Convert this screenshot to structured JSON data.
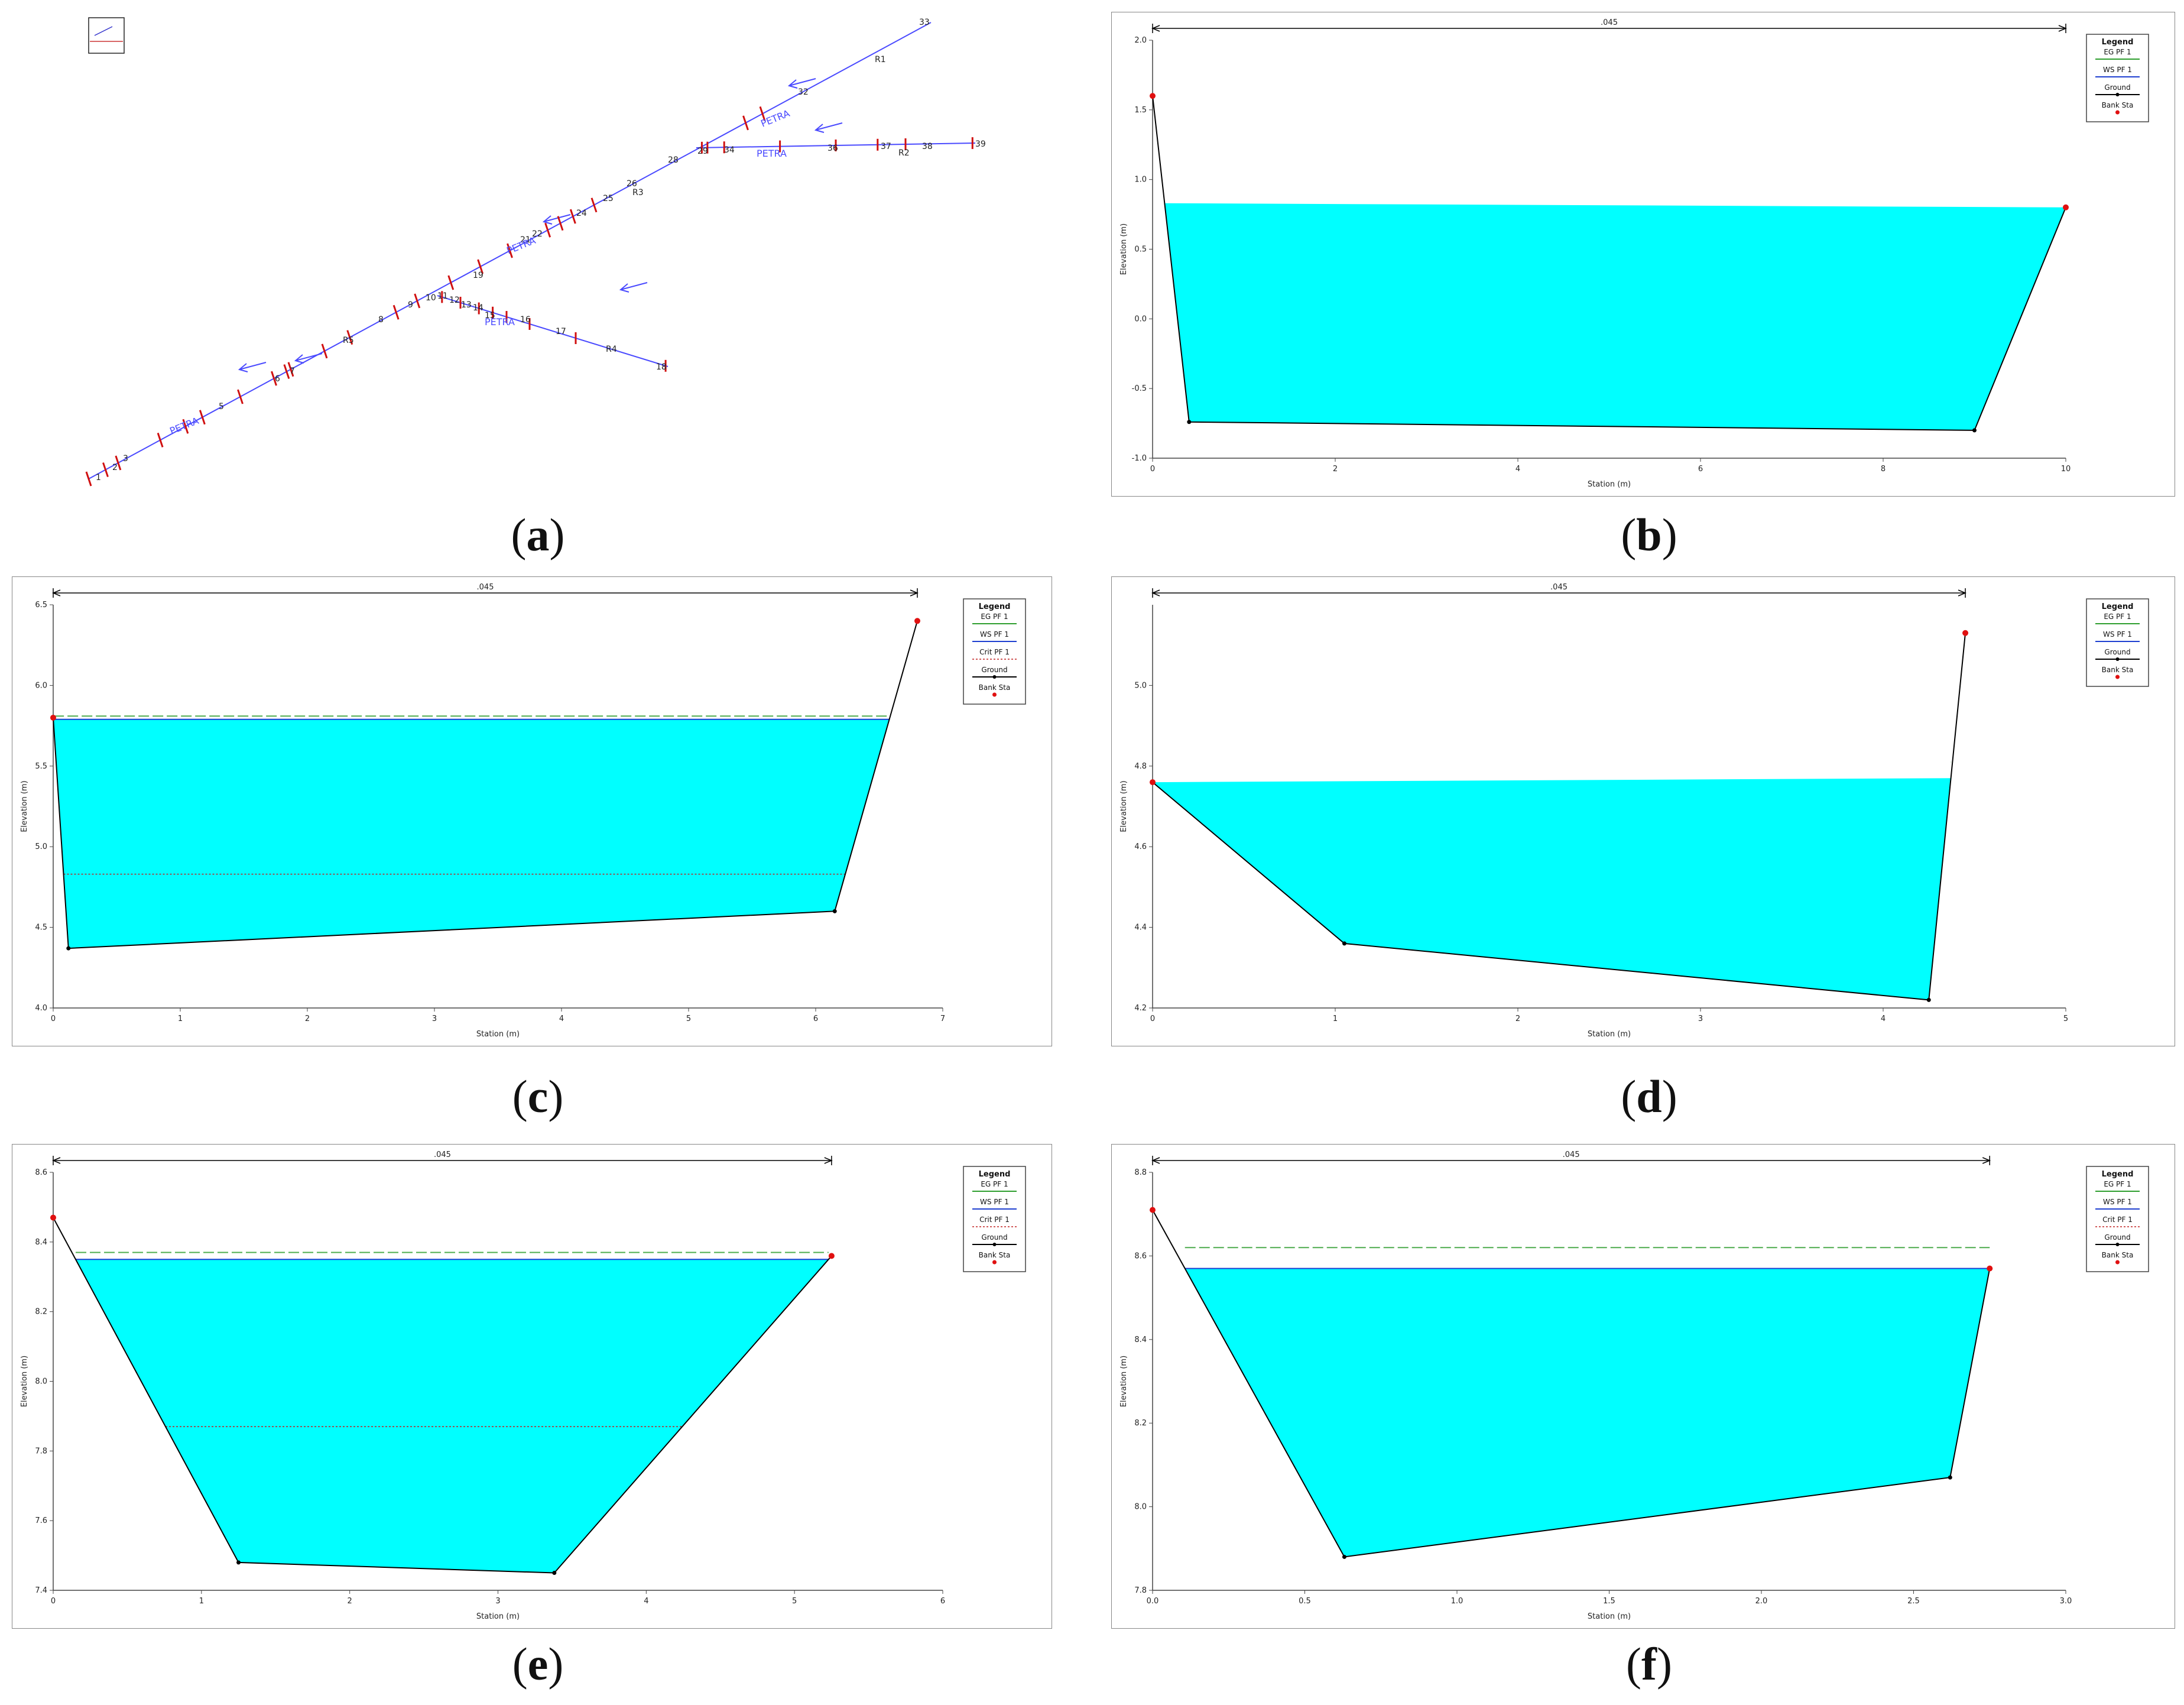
{
  "captions": {
    "a": "a",
    "b": "b",
    "c": "c",
    "d": "d",
    "e": "e",
    "f": "f"
  },
  "map": {
    "river_label": "PETRA",
    "reach_labels": [
      "R1",
      "R2",
      "R3",
      "R4",
      "R5"
    ],
    "station_labels": [
      "1",
      "2",
      "3",
      "5",
      "6",
      "7",
      "8",
      "9",
      "10",
      "11",
      "12",
      "13",
      "14",
      "15",
      "16",
      "17",
      "18",
      "19",
      "21",
      "22",
      "24",
      "25",
      "26",
      "28",
      "29",
      "33",
      "34",
      "36",
      "37",
      "38",
      "39",
      "32"
    ]
  },
  "legend": {
    "title": "Legend",
    "entries_3": [
      "EG PF 1",
      "WS PF 1",
      "Ground",
      "Bank Sta"
    ],
    "entries_4": [
      "EG PF 1",
      "WS PF 1",
      "Crit PF 1",
      "Ground",
      "Bank Sta"
    ]
  },
  "colors": {
    "water": "#00ffff",
    "eg": "#2e9e2e",
    "ws": "#1f3fd0",
    "crit": "#c02020",
    "bank": "#e01010",
    "ground": "#000000"
  },
  "chart_data": [
    {
      "id": "b",
      "type": "area",
      "xlabel": "Station (m)",
      "ylabel": "Elevation (m)",
      "xlim": [
        0,
        10
      ],
      "ylim": [
        -1.0,
        2.0
      ],
      "xticks": [
        0,
        2,
        4,
        6,
        8,
        10
      ],
      "xtick_labels": [
        "0",
        "2",
        "4",
        "6",
        "8",
        "10"
      ],
      "yticks": [
        -1.0,
        -0.5,
        0.0,
        0.5,
        1.0,
        1.5,
        2.0
      ],
      "ytick_labels": [
        "-1.0",
        "-0.5",
        "0.0",
        "0.5",
        "1.0",
        "1.5",
        "2.0"
      ],
      "manning_label": ".045",
      "manning_x": [
        0,
        10
      ],
      "ground": [
        [
          0,
          1.6
        ],
        [
          0.4,
          -0.74
        ],
        [
          9.0,
          -0.8
        ],
        [
          10,
          0.8
        ]
      ],
      "bank_stations": [
        [
          0,
          1.6
        ],
        [
          10,
          0.8
        ]
      ],
      "ws": 0.83,
      "eg": 0.85,
      "crit": null,
      "legend": "entries_3"
    },
    {
      "id": "c",
      "type": "area",
      "xlabel": "Station (m)",
      "ylabel": "Elevation (m)",
      "xlim": [
        0,
        7
      ],
      "ylim": [
        4.0,
        6.5
      ],
      "xticks": [
        0,
        1,
        2,
        3,
        4,
        5,
        6,
        7
      ],
      "xtick_labels": [
        "0",
        "1",
        "2",
        "3",
        "4",
        "5",
        "6",
        "7"
      ],
      "yticks": [
        4.0,
        4.5,
        5.0,
        5.5,
        6.0,
        6.5
      ],
      "ytick_labels": [
        "4.0",
        "4.5",
        "5.0",
        "5.5",
        "6.0",
        "6.5"
      ],
      "manning_label": ".045",
      "manning_x": [
        0,
        6.8
      ],
      "ground": [
        [
          0,
          5.8
        ],
        [
          0.12,
          4.37
        ],
        [
          6.15,
          4.6
        ],
        [
          6.8,
          6.4
        ]
      ],
      "bank_stations": [
        [
          0,
          5.8
        ],
        [
          6.8,
          6.4
        ]
      ],
      "ws": 5.79,
      "eg": 5.81,
      "crit": 4.83,
      "legend": "entries_4"
    },
    {
      "id": "d",
      "type": "area",
      "xlabel": "Station (m)",
      "ylabel": "Elevation (m)",
      "xlim": [
        0,
        5
      ],
      "ylim": [
        4.2,
        5.2
      ],
      "xticks": [
        0,
        1,
        2,
        3,
        4,
        5
      ],
      "xtick_labels": [
        "0",
        "1",
        "2",
        "3",
        "4",
        "5"
      ],
      "yticks": [
        4.2,
        4.4,
        4.6,
        4.8,
        5.0
      ],
      "ytick_labels": [
        "4.2",
        "4.4",
        "4.6",
        "4.8",
        "5.0"
      ],
      "manning_label": ".045",
      "manning_x": [
        0,
        4.45
      ],
      "ground": [
        [
          0,
          4.76
        ],
        [
          1.05,
          4.36
        ],
        [
          4.25,
          4.22
        ],
        [
          4.45,
          5.13
        ]
      ],
      "bank_stations": [
        [
          0,
          4.76
        ],
        [
          4.45,
          5.13
        ]
      ],
      "ws": 4.77,
      "eg": 4.81,
      "crit": null,
      "legend": "entries_3"
    },
    {
      "id": "e",
      "type": "area",
      "xlabel": "Station (m)",
      "ylabel": "Elevation (m)",
      "xlim": [
        0,
        6
      ],
      "ylim": [
        7.4,
        8.6
      ],
      "xticks": [
        0,
        1,
        2,
        3,
        4,
        5,
        6
      ],
      "xtick_labels": [
        "0",
        "1",
        "2",
        "3",
        "4",
        "5",
        "6"
      ],
      "yticks": [
        7.4,
        7.6,
        7.8,
        8.0,
        8.2,
        8.4,
        8.6
      ],
      "ytick_labels": [
        "7.4",
        "7.6",
        "7.8",
        "8.0",
        "8.2",
        "8.4",
        "8.6"
      ],
      "manning_label": ".045",
      "manning_x": [
        0,
        5.25
      ],
      "ground": [
        [
          0,
          8.47
        ],
        [
          1.25,
          7.48
        ],
        [
          3.38,
          7.45
        ],
        [
          5.25,
          8.36
        ]
      ],
      "bank_stations": [
        [
          0,
          8.47
        ],
        [
          5.25,
          8.36
        ]
      ],
      "ws": 8.35,
      "eg": 8.37,
      "crit": 7.87,
      "legend": "entries_4"
    },
    {
      "id": "f",
      "type": "area",
      "xlabel": "Station (m)",
      "ylabel": "Elevation (m)",
      "xlim": [
        0,
        3.0
      ],
      "ylim": [
        7.8,
        8.8
      ],
      "xticks": [
        0,
        0.5,
        1.0,
        1.5,
        2.0,
        2.5,
        3.0
      ],
      "xtick_labels": [
        "0.0",
        "0.5",
        "1.0",
        "1.5",
        "2.0",
        "2.5",
        "3.0"
      ],
      "yticks": [
        7.8,
        8.0,
        8.2,
        8.4,
        8.6,
        8.8
      ],
      "ytick_labels": [
        "7.8",
        "8.0",
        "8.2",
        "8.4",
        "8.6",
        "8.8"
      ],
      "manning_label": ".045",
      "manning_x": [
        0,
        2.75
      ],
      "ground": [
        [
          0,
          8.71
        ],
        [
          0.63,
          7.88
        ],
        [
          2.62,
          8.07
        ],
        [
          2.75,
          8.57
        ]
      ],
      "bank_stations": [
        [
          0,
          8.71
        ],
        [
          2.75,
          8.57
        ]
      ],
      "ws": 8.57,
      "eg": 8.62,
      "crit": null,
      "legend": "entries_4"
    }
  ]
}
